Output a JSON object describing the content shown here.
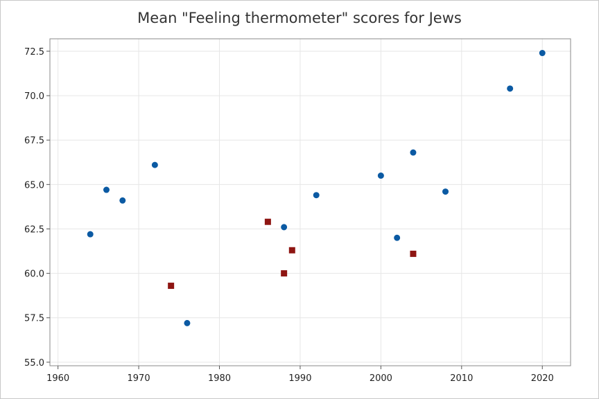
{
  "chart_data": {
    "type": "scatter",
    "title": "Mean \"Feeling thermometer\" scores for Jews",
    "xlabel": "",
    "ylabel": "",
    "xlim": [
      1959,
      2023.5
    ],
    "ylim": [
      54.8,
      73.2
    ],
    "xticks": [
      1960,
      1970,
      1980,
      1990,
      2000,
      2010,
      2020
    ],
    "yticks": [
      55.0,
      57.5,
      60.0,
      62.5,
      65.0,
      67.5,
      70.0,
      72.5
    ],
    "grid": true,
    "legend": "none",
    "series": [
      {
        "name": "series-circle",
        "marker": "circle",
        "color": "#0b5aa3",
        "x": [
          1964,
          1966,
          1968,
          1972,
          1976,
          1988,
          1992,
          2000,
          2002,
          2004,
          2008,
          2016,
          2020
        ],
        "y": [
          62.2,
          64.7,
          64.1,
          66.1,
          57.2,
          62.6,
          64.4,
          65.5,
          62.0,
          66.8,
          64.6,
          70.4,
          72.4
        ]
      },
      {
        "name": "series-square",
        "marker": "square",
        "color": "#8e1512",
        "x": [
          1974,
          1986,
          1988,
          1989,
          2004
        ],
        "y": [
          59.3,
          62.9,
          60.0,
          61.3,
          61.1
        ]
      }
    ]
  }
}
